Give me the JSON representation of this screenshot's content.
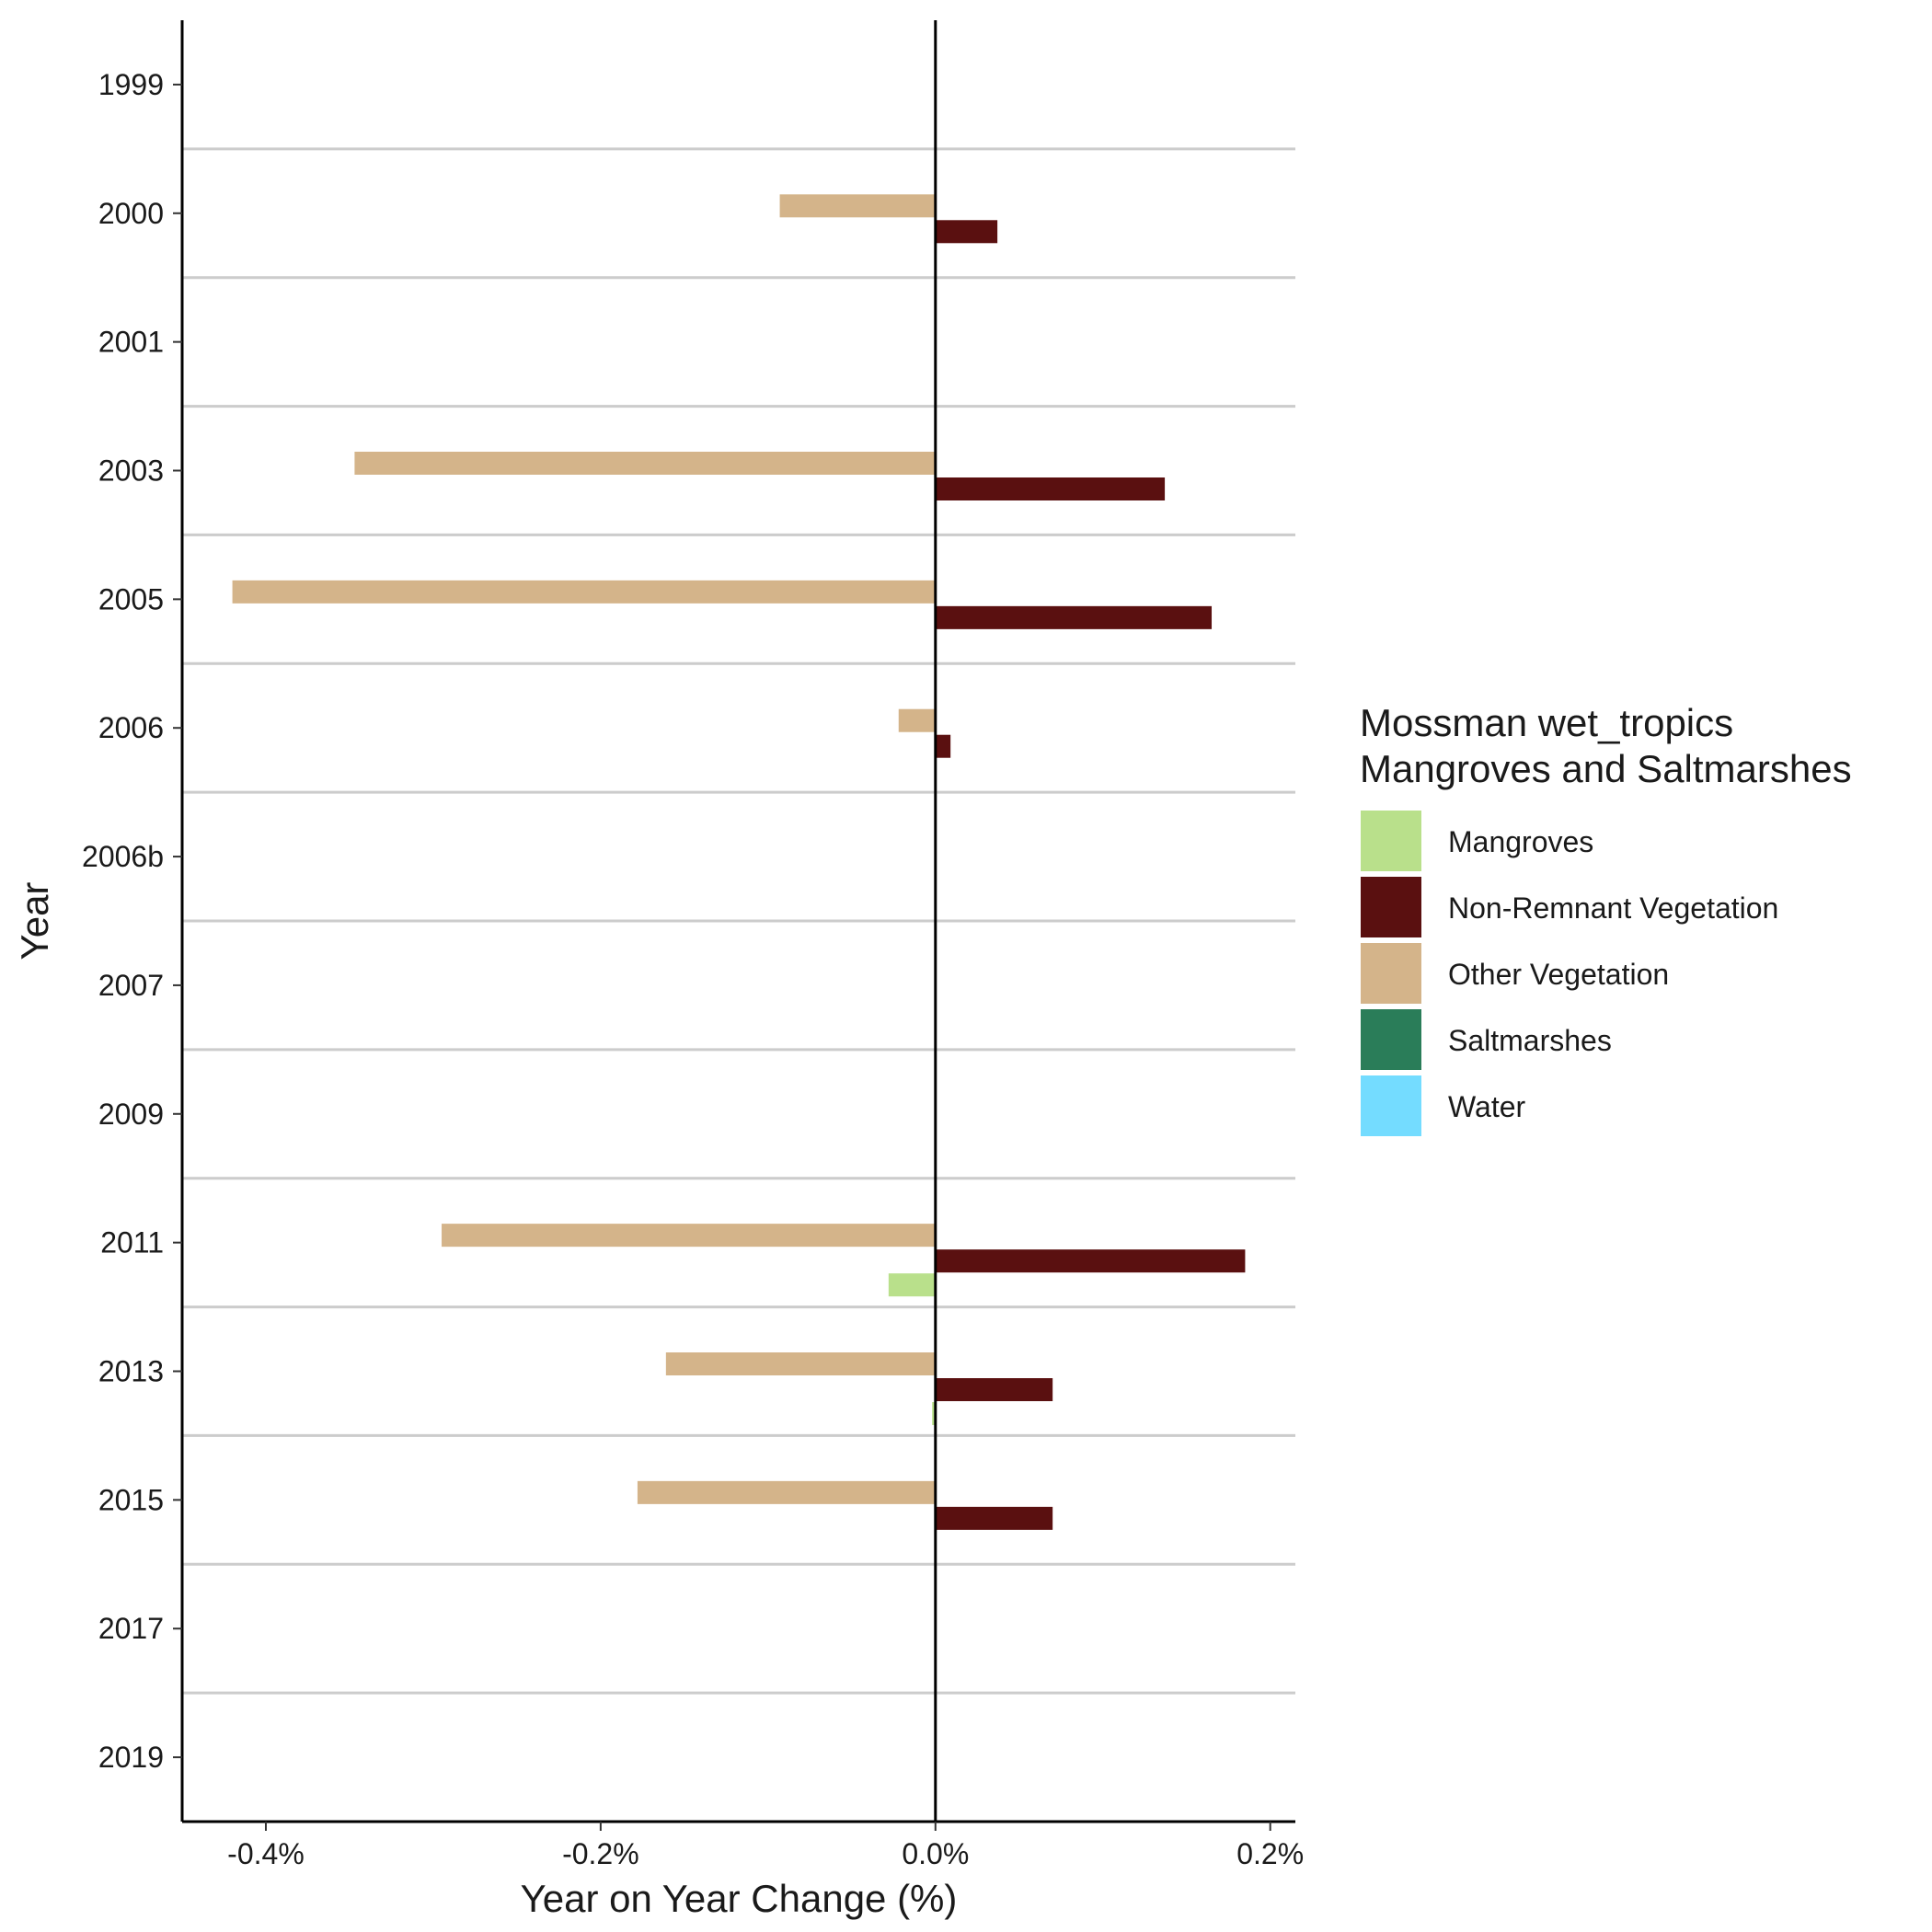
{
  "chart_data": {
    "type": "bar",
    "orientation": "horizontal",
    "title": "",
    "xlabel": "Year on Year Change (%)",
    "ylabel": "Year",
    "xlim": [
      -0.45,
      0.215
    ],
    "x_ticks": [
      -0.4,
      -0.2,
      0.0,
      0.2
    ],
    "x_tick_labels": [
      "-0.4%",
      "-0.2%",
      "0.0%",
      "0.2%"
    ],
    "grid": "horizontal separators only",
    "legend_position": "right",
    "categories": [
      "1999",
      "2000",
      "2001",
      "2003",
      "2005",
      "2006",
      "2006b",
      "2007",
      "2009",
      "2011",
      "2013",
      "2015",
      "2017",
      "2019"
    ],
    "legend": {
      "title_lines": [
        "Mossman wet_tropics",
        "Mangroves and Saltmarshes"
      ]
    },
    "series": [
      {
        "name": "Mangroves",
        "color": "#b9e08b",
        "values": [
          0,
          0,
          0,
          0,
          0,
          0,
          0,
          0,
          0,
          -0.028,
          -0.002,
          0,
          0,
          0
        ]
      },
      {
        "name": "Non-Remnant Vegetation",
        "color": "#5a1010",
        "values": [
          0,
          0.037,
          0,
          0.137,
          0.165,
          0.009,
          0,
          0,
          0,
          0.185,
          0.07,
          0.07,
          0,
          0
        ]
      },
      {
        "name": "Other Vegetation",
        "color": "#d4b48a",
        "values": [
          0,
          -0.093,
          0,
          -0.347,
          -0.42,
          -0.022,
          0,
          0,
          0,
          -0.295,
          -0.161,
          -0.178,
          0,
          0
        ]
      },
      {
        "name": "Saltmarshes",
        "color": "#2a7d59",
        "values": [
          0,
          0,
          0,
          0,
          0,
          0,
          0,
          0,
          0,
          0,
          0,
          0,
          0,
          0
        ]
      },
      {
        "name": "Water",
        "color": "#74dcff",
        "values": [
          0,
          0,
          0,
          0,
          0,
          0,
          0,
          0,
          0,
          0,
          0,
          0,
          0,
          0
        ]
      }
    ]
  }
}
